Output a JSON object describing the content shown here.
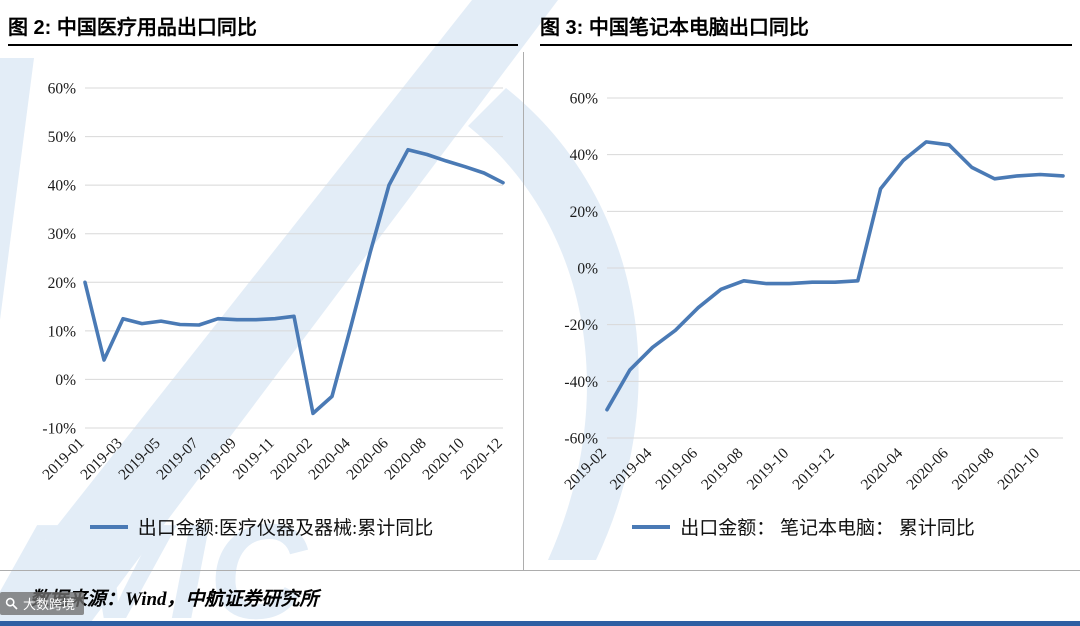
{
  "page": {
    "accent_blue": "#4a7ab5",
    "watermark_blue": "#e3edf7",
    "bottom_bar_color": "#2e5fa3",
    "footer_source": "数据来源：Wind，中航证券研究所",
    "watermark_badge_text": "大数跨境",
    "watermark_logo_text": "AVIC"
  },
  "chart_data": [
    {
      "type": "line",
      "title": "图 2: 中国医疗用品出口同比",
      "legend": "出口金额:医疗仪器及器械:累计同比",
      "legend_position": "bottom",
      "grid": "horizontal",
      "line_color": "#4a7ab5",
      "ylim": [
        -10,
        60
      ],
      "yticks": [
        60,
        50,
        40,
        30,
        20,
        10,
        0,
        -10
      ],
      "ytick_suffix": "%",
      "x": [
        "2019-01",
        "2019-02",
        "2019-03",
        "2019-04",
        "2019-05",
        "2019-06",
        "2019-07",
        "2019-08",
        "2019-09",
        "2019-10",
        "2019-11",
        "2019-12",
        "2020-02",
        "2020-03",
        "2020-04",
        "2020-05",
        "2020-06",
        "2020-07",
        "2020-08",
        "2020-09",
        "2020-10",
        "2020-11",
        "2020-12"
      ],
      "xtick_indices": [
        0,
        2,
        4,
        6,
        8,
        10,
        12,
        14,
        16,
        18,
        20,
        22
      ],
      "values": [
        20,
        4,
        12.5,
        11.5,
        12,
        11.3,
        11.2,
        12.5,
        12.3,
        12.3,
        12.5,
        13,
        -7,
        -3.5,
        11,
        26,
        40,
        47.3,
        46.3,
        45,
        43.8,
        42.5,
        40.5
      ]
    },
    {
      "type": "line",
      "title": "图 3: 中国笔记本电脑出口同比",
      "legend": "出口金额： 笔记本电脑： 累计同比",
      "legend_position": "bottom",
      "grid": "horizontal",
      "line_color": "#4a7ab5",
      "ylim": [
        -60,
        60
      ],
      "yticks": [
        60,
        40,
        20,
        0,
        -20,
        -40,
        -60
      ],
      "ytick_suffix": "%",
      "x": [
        "2019-02",
        "2019-03",
        "2019-04",
        "2019-05",
        "2019-06",
        "2019-07",
        "2019-08",
        "2019-09",
        "2019-10",
        "2019-11",
        "2019-12",
        "2020-02",
        "2020-03",
        "2020-04",
        "2020-05",
        "2020-06",
        "2020-07",
        "2020-08",
        "2020-09",
        "2020-10",
        "2020-11"
      ],
      "xtick_indices": [
        0,
        2,
        4,
        6,
        8,
        10,
        13,
        15,
        17,
        19
      ],
      "values": [
        -50,
        -36,
        -28,
        -22,
        -14,
        -7.5,
        -4.5,
        -5.5,
        -5.5,
        -5,
        -5,
        -4.5,
        28,
        38,
        44.5,
        43.5,
        35.5,
        31.5,
        32.5,
        33,
        32.5
      ]
    }
  ]
}
